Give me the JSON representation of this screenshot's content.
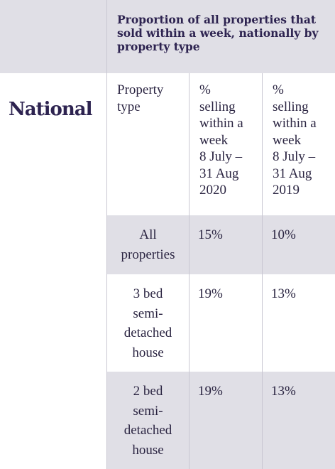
{
  "table": {
    "title": "Proportion of all properties that sold within a week, nationally by property type",
    "region": "National",
    "headers": {
      "property_type": "Property\ntype",
      "col_2020": "%\nselling\nwithin a\nweek\n8 July –\n31 Aug\n2020",
      "col_2019": "%\nselling\nwithin a\nweek\n8 July –\n31 Aug\n2019"
    },
    "rows": [
      {
        "type": "All\nproperties",
        "v2020": "15%",
        "v2019": "10%"
      },
      {
        "type": "3 bed\nsemi-\ndetached\nhouse",
        "v2020": "19%",
        "v2019": "13%"
      },
      {
        "type": "2 bed\nsemi-\ndetached\nhouse",
        "v2020": "19%",
        "v2019": "13%"
      }
    ]
  }
}
